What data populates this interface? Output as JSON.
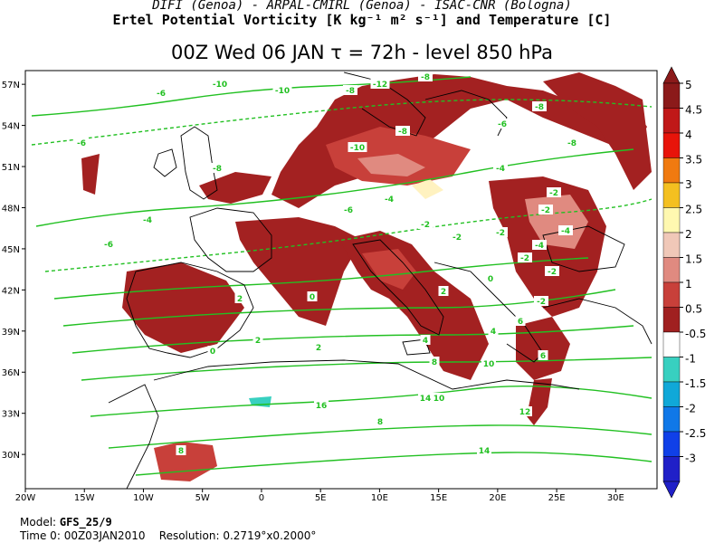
{
  "header": {
    "line1": "DIFI (Genoa)  -  ARPAL-CMIRL (Genoa)  -  ISAC-CNR (Bologna)",
    "line2": "Ertel Potential Vorticity [K kg⁻¹ m² s⁻¹] and Temperature [C]",
    "line3": "00Z Wed 06 JAN  τ = 72h  -  level 850 hPa"
  },
  "map": {
    "lat_labels": [
      "57N",
      "54N",
      "51N",
      "48N",
      "45N",
      "42N",
      "39N",
      "36N",
      "33N",
      "30N"
    ],
    "lon_labels": [
      "20W",
      "15W",
      "10W",
      "5W",
      "0",
      "5E",
      "10E",
      "15E",
      "20E",
      "25E",
      "30E"
    ],
    "contour_labels": [
      "-6",
      "-10",
      "-10",
      "-8",
      "-6",
      "-8",
      "-12",
      "-8",
      "-10",
      "-6",
      "-8",
      "-8",
      "-8",
      "-4",
      "-6",
      "-4",
      "-2",
      "-2",
      "-4",
      "-2",
      "-2",
      "-2",
      "-4",
      "-6",
      "-2",
      "0",
      "-2",
      "0",
      "2",
      "2",
      "-2",
      "0",
      "2",
      "4",
      "4",
      "6",
      "8",
      "10",
      "12",
      "14",
      "16",
      "8",
      "10",
      "14",
      "-4",
      "2",
      "6",
      "8"
    ],
    "pv_color": "#a32121",
    "contour_color": "#22c022"
  },
  "colorbar": {
    "labels": [
      "5",
      "4.5",
      "4",
      "3.5",
      "3",
      "2.5",
      "2",
      "1.5",
      "1",
      "0.5",
      "-0.5",
      "-1",
      "-1.5",
      "-2",
      "-2.5",
      "-3"
    ],
    "colors": [
      "#8b1a1a",
      "#c01818",
      "#e8140a",
      "#f07a10",
      "#f4c020",
      "#fff8b0",
      "#f0c8b8",
      "#e08a80",
      "#c8403a",
      "#a02020",
      "#ffffff",
      "#38d0c0",
      "#10a8d8",
      "#1078e8",
      "#1040e8",
      "#2020c8"
    ]
  },
  "footer": {
    "model_label": "Model:",
    "model_value": "GFS_25/9",
    "time_label": "Time 0:",
    "time_value": "00Z03JAN2010",
    "res_label": "Resolution:",
    "res_value": "0.2719°x0.2000°"
  }
}
